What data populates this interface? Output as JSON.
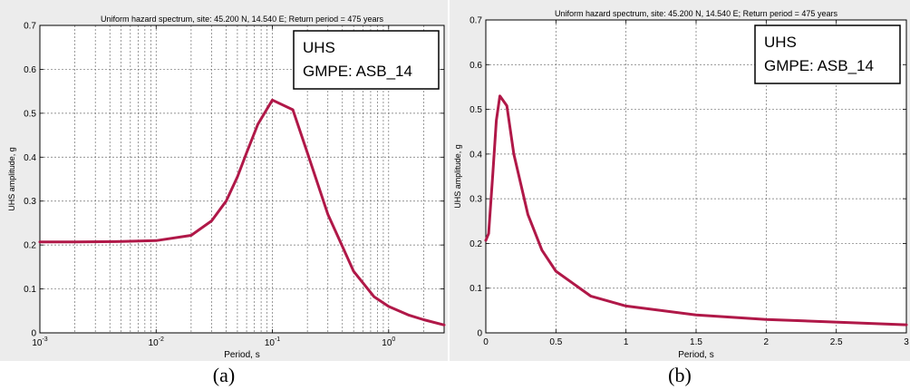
{
  "colors": {
    "curve": "#b01848",
    "grid": "#707070",
    "axes_bg": "#ffffff",
    "figure_bg": "#ececec"
  },
  "panels": [
    {
      "caption": "(a)",
      "legend_line1": "UHS",
      "legend_line2": "GMPE: ASB_14"
    },
    {
      "caption": "(b)",
      "legend_line1": "UHS",
      "legend_line2": "GMPE: ASB_14"
    }
  ],
  "chart_data": [
    {
      "type": "line",
      "title": "Uniform hazard spectrum, site: 45.200 N,  14.540 E;     Return period = 475 years",
      "xlabel": "Period, s",
      "ylabel": "UHS amplitude, g",
      "x_scale": "log",
      "xlim": [
        0.001,
        3
      ],
      "ylim": [
        0,
        0.7
      ],
      "x_ticks": [
        0.001,
        0.01,
        0.1,
        1
      ],
      "x_tick_labels": [
        [
          "10",
          "-3"
        ],
        [
          "10",
          "-2"
        ],
        [
          "10",
          "-1"
        ],
        [
          "10",
          "0"
        ]
      ],
      "y_ticks": [
        0,
        0.1,
        0.2,
        0.3,
        0.4,
        0.5,
        0.6,
        0.7
      ],
      "y_tick_labels": [
        "0",
        "0.1",
        "0.2",
        "0.3",
        "0.4",
        "0.5",
        "0.6",
        "0.7"
      ],
      "grid": true,
      "legend_position": "top-right",
      "series": [
        {
          "name": "UHS",
          "x": [
            0.001,
            0.002,
            0.005,
            0.01,
            0.02,
            0.03,
            0.04,
            0.05,
            0.06,
            0.075,
            0.1,
            0.15,
            0.2,
            0.3,
            0.5,
            0.75,
            1.0,
            1.5,
            2.0,
            3.0
          ],
          "y": [
            0.207,
            0.207,
            0.208,
            0.21,
            0.222,
            0.255,
            0.3,
            0.355,
            0.41,
            0.475,
            0.53,
            0.508,
            0.41,
            0.27,
            0.14,
            0.082,
            0.06,
            0.04,
            0.03,
            0.018
          ]
        }
      ]
    },
    {
      "type": "line",
      "title": "Uniform hazard spectrum, site: 45.200 N,  14.540 E;     Return period = 475 years",
      "xlabel": "Period, s",
      "ylabel": "UHS amplitude, g",
      "x_scale": "linear",
      "xlim": [
        0,
        3
      ],
      "ylim": [
        0,
        0.7
      ],
      "x_ticks": [
        0,
        0.5,
        1,
        1.5,
        2,
        2.5,
        3
      ],
      "x_tick_labels": [
        "0",
        "0.5",
        "1",
        "1.5",
        "2",
        "2.5",
        "3"
      ],
      "y_ticks": [
        0,
        0.1,
        0.2,
        0.3,
        0.4,
        0.5,
        0.6,
        0.7
      ],
      "y_tick_labels": [
        "0",
        "0.1",
        "0.2",
        "0.3",
        "0.4",
        "0.5",
        "0.6",
        "0.7"
      ],
      "grid": true,
      "legend_position": "top-right",
      "series": [
        {
          "name": "UHS",
          "x": [
            0.0,
            0.02,
            0.05,
            0.075,
            0.1,
            0.15,
            0.2,
            0.3,
            0.4,
            0.5,
            0.75,
            1.0,
            1.5,
            2.0,
            3.0
          ],
          "y": [
            0.207,
            0.222,
            0.355,
            0.475,
            0.53,
            0.508,
            0.4,
            0.265,
            0.185,
            0.138,
            0.082,
            0.06,
            0.04,
            0.03,
            0.018
          ]
        }
      ]
    }
  ]
}
